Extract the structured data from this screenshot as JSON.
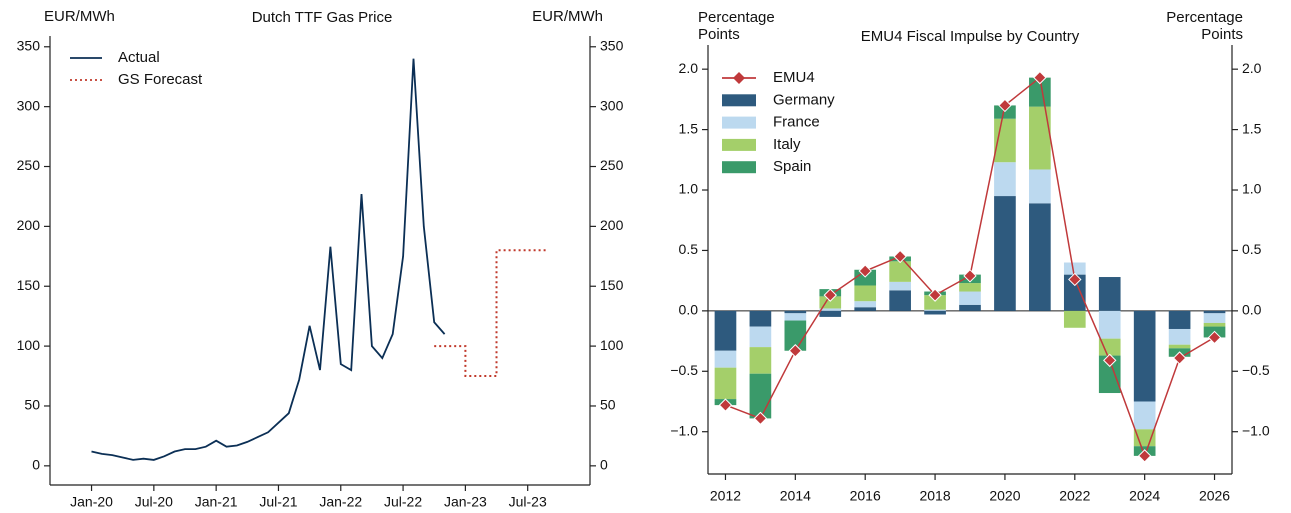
{
  "chart_data": [
    {
      "type": "line",
      "title": "Dutch TTF Gas Price",
      "ylabel": "EUR/MWh",
      "mirror_y": true,
      "grid": false,
      "legend": "upper left",
      "xlim": [
        "Sep-19",
        "Jan-24"
      ],
      "xticks": [
        "Jan-20",
        "Jul-20",
        "Jan-21",
        "Jul-21",
        "Jan-22",
        "Jul-22",
        "Jan-23",
        "Jul-23"
      ],
      "ylim": [
        -16,
        359
      ],
      "yticks": [
        0,
        50,
        100,
        150,
        200,
        250,
        300,
        350
      ],
      "series": [
        {
          "name": "Actual",
          "color": "#0b2f55",
          "style": "solid",
          "x": [
            "Jan-20",
            "Feb-20",
            "Mar-20",
            "Apr-20",
            "May-20",
            "Jun-20",
            "Jul-20",
            "Aug-20",
            "Sep-20",
            "Oct-20",
            "Nov-20",
            "Dec-20",
            "Jan-21",
            "Feb-21",
            "Mar-21",
            "Apr-21",
            "May-21",
            "Jun-21",
            "Jul-21",
            "Aug-21",
            "Sep-21",
            "Oct-21",
            "Nov-21",
            "Dec-21",
            "Jan-22",
            "Feb-22",
            "Mar-22",
            "Apr-22",
            "May-22",
            "Jun-22",
            "Jul-22",
            "Aug-22",
            "Sep-22",
            "Oct-22",
            "Nov-22"
          ],
          "values": [
            12,
            10,
            9,
            7,
            5,
            6,
            5,
            8,
            12,
            14,
            14,
            16,
            21,
            16,
            17,
            20,
            24,
            28,
            36,
            44,
            72,
            117,
            80,
            183,
            85,
            80,
            227,
            100,
            90,
            110,
            175,
            340,
            200,
            120,
            110
          ]
        },
        {
          "name": "GS Forecast",
          "color": "#c0392b",
          "style": "dotted",
          "x": [
            "Oct-22",
            "Jan-23",
            "Jan-23",
            "Apr-23",
            "Apr-23",
            "Sep-23"
          ],
          "values": [
            100,
            100,
            75,
            75,
            180,
            180
          ]
        }
      ]
    },
    {
      "type": "bar",
      "title": "EMU4 Fiscal Impulse by Country",
      "ylabel": "Percentage Points",
      "mirror_y": true,
      "grid": false,
      "stacked": true,
      "zero_line": true,
      "legend": "upper left",
      "x": [
        2012,
        2013,
        2014,
        2015,
        2016,
        2017,
        2018,
        2019,
        2020,
        2021,
        2022,
        2023,
        2024,
        2025,
        2026
      ],
      "xlim": [
        2011.5,
        2026.5
      ],
      "xticks": [
        2012,
        2014,
        2016,
        2018,
        2020,
        2022,
        2024,
        2026
      ],
      "ylim": [
        -1.35,
        2.2
      ],
      "yticks": [
        {
          "value": -1.0,
          "label": "−1.0"
        },
        {
          "value": -0.5,
          "label": "−0.5"
        },
        {
          "value": 0,
          "label": "0.0"
        },
        0.5,
        {
          "value": 1.0,
          "label": "1.0"
        },
        1.5,
        {
          "value": 2.0,
          "label": "2.0"
        }
      ],
      "series": [
        {
          "name": "EMU4",
          "type": "line",
          "marker": "diamond",
          "color": "#c0393b",
          "values": [
            -0.78,
            -0.89,
            -0.33,
            0.13,
            0.33,
            0.45,
            0.13,
            0.29,
            1.7,
            1.93,
            0.26,
            -0.41,
            -1.2,
            -0.39,
            -0.22
          ]
        },
        {
          "name": "Germany",
          "type": "bar",
          "color": "#2e5a7e",
          "values": [
            -0.33,
            -0.13,
            -0.02,
            -0.05,
            0.03,
            0.17,
            -0.03,
            0.05,
            0.95,
            0.89,
            0.3,
            0.28,
            -0.75,
            -0.15,
            -0.02
          ]
        },
        {
          "name": "France",
          "type": "bar",
          "color": "#bcd9ef",
          "values": [
            -0.14,
            -0.17,
            -0.06,
            0.02,
            0.05,
            0.07,
            0.01,
            0.11,
            0.28,
            0.28,
            0.1,
            -0.23,
            -0.23,
            -0.13,
            -0.08
          ]
        },
        {
          "name": "Italy",
          "type": "bar",
          "color": "#a4cf6a",
          "values": [
            -0.26,
            -0.22,
            0,
            0.1,
            0.13,
            0.17,
            0.12,
            0.07,
            0.36,
            0.52,
            -0.14,
            -0.14,
            -0.14,
            -0.03,
            -0.03
          ]
        },
        {
          "name": "Spain",
          "type": "bar",
          "color": "#3a9a6a",
          "values": [
            -0.05,
            -0.37,
            -0.25,
            0.06,
            0.13,
            0.04,
            0.03,
            0.07,
            0.11,
            0.24,
            0,
            -0.31,
            -0.08,
            -0.07,
            -0.09
          ]
        }
      ]
    }
  ]
}
